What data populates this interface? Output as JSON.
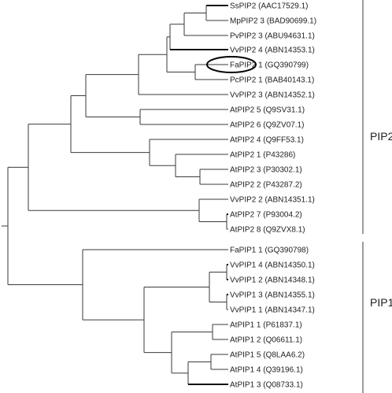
{
  "tree": {
    "taxa": [
      {
        "label": "SsPIP2 (AAC17529.1)"
      },
      {
        "label": "MpPIP2 3 (BAD90699.1)"
      },
      {
        "label": "PvPIP2 3 (ABU94631.1)"
      },
      {
        "label": "VvPIP2 4 (ABN14353.1)"
      },
      {
        "label": "FaPIP2 1 (GQ390799)",
        "highlighted": true
      },
      {
        "label": "PcPIP2 1 (BAB40143.1)"
      },
      {
        "label": "VvPIP2 3 (ABN14352.1)"
      },
      {
        "label": "AtPIP2 5 (Q9SV31.1)"
      },
      {
        "label": "AtPIP2 6 (Q9ZV07.1)"
      },
      {
        "label": "AtPIP2 4 (Q9FF53.1)"
      },
      {
        "label": "AtPIP2 1 (P43286)"
      },
      {
        "label": "AtPIP2 3 (P30302.1)"
      },
      {
        "label": "AtPIP2 2 (P43287.2)"
      },
      {
        "label": "VvPIP2 2 (ABN14351.1)"
      },
      {
        "label": "AtPIP2 7 (P93004.2)"
      },
      {
        "label": "AtPIP2 8 (Q9ZVX8.1)"
      },
      {
        "label": "FaPIP1 1 (GQ390798)"
      },
      {
        "label": "VvPIP1 4 (ABN14350.1)"
      },
      {
        "label": "VvPIP1 2 (ABN14348.1)"
      },
      {
        "label": "VvPIP1 3 (ABN14355.1)"
      },
      {
        "label": "VvPIP1 1 (ABN14347.1)"
      },
      {
        "label": "AtPIP1 1 (P61837.1)"
      },
      {
        "label": "AtPIP1 2 (Q06611.1)"
      },
      {
        "label": "AtPIP1 5 (Q8LAA6.2)"
      },
      {
        "label": "AtPIP1 4 (Q39196.1)"
      },
      {
        "label": "AtPIP1 3 (Q08733.1)"
      }
    ],
    "groups": [
      {
        "label": "PIP2"
      },
      {
        "label": "PIP1"
      }
    ]
  }
}
